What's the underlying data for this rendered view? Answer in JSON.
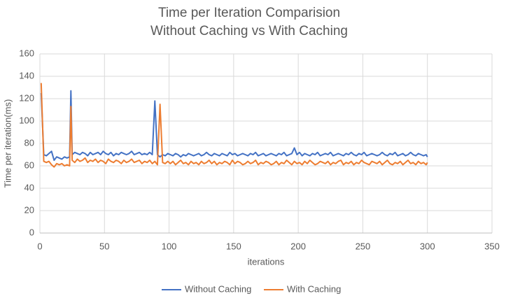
{
  "chart_data": {
    "type": "line",
    "title": "Time per Iteration Comparision",
    "subtitle": "Without Caching vs With Caching",
    "xlabel": "iterations",
    "ylabel": "Time per iteration(ms)",
    "xlim": [
      0,
      350
    ],
    "xticks": [
      0,
      50,
      100,
      150,
      200,
      250,
      300,
      350
    ],
    "ylim": [
      0,
      160
    ],
    "yticks": [
      0,
      20,
      40,
      60,
      80,
      100,
      120,
      140,
      160
    ],
    "grid": true,
    "legend": "bottom",
    "x": [
      1,
      3,
      5,
      7,
      9,
      11,
      13,
      15,
      17,
      19,
      21,
      23,
      24,
      25,
      27,
      29,
      31,
      33,
      35,
      37,
      39,
      41,
      43,
      45,
      47,
      49,
      51,
      53,
      55,
      57,
      59,
      61,
      63,
      65,
      67,
      69,
      71,
      73,
      75,
      77,
      79,
      81,
      83,
      85,
      87,
      89,
      91,
      93,
      95,
      97,
      99,
      101,
      103,
      105,
      107,
      109,
      111,
      113,
      115,
      117,
      119,
      121,
      123,
      125,
      127,
      129,
      131,
      133,
      135,
      137,
      139,
      141,
      143,
      145,
      147,
      149,
      151,
      153,
      155,
      157,
      159,
      161,
      163,
      165,
      167,
      169,
      171,
      173,
      175,
      177,
      179,
      181,
      183,
      185,
      187,
      189,
      191,
      193,
      195,
      197,
      199,
      201,
      203,
      205,
      207,
      209,
      211,
      213,
      215,
      217,
      219,
      221,
      223,
      225,
      227,
      229,
      231,
      233,
      235,
      237,
      239,
      241,
      243,
      245,
      247,
      249,
      251,
      253,
      255,
      257,
      259,
      261,
      263,
      265,
      267,
      269,
      271,
      273,
      275,
      277,
      279,
      281,
      283,
      285,
      287,
      289,
      291,
      293,
      295,
      297,
      299,
      300
    ],
    "series": [
      {
        "name": "Without Caching",
        "color": "#4472c4",
        "values": [
          125,
          70,
          69,
          71,
          73,
          65,
          68,
          67,
          66,
          68,
          67,
          68,
          127,
          70,
          72,
          71,
          70,
          72,
          71,
          69,
          72,
          70,
          71,
          72,
          70,
          73,
          71,
          70,
          72,
          69,
          71,
          70,
          72,
          71,
          70,
          71,
          73,
          70,
          71,
          72,
          70,
          71,
          70,
          72,
          70,
          118,
          70,
          68,
          70,
          69,
          71,
          70,
          69,
          71,
          70,
          68,
          70,
          69,
          71,
          70,
          69,
          70,
          71,
          69,
          70,
          72,
          70,
          69,
          71,
          70,
          69,
          71,
          70,
          69,
          72,
          70,
          71,
          69,
          70,
          71,
          70,
          69,
          71,
          70,
          72,
          69,
          70,
          71,
          69,
          70,
          71,
          70,
          69,
          71,
          70,
          72,
          69,
          70,
          71,
          76,
          70,
          72,
          69,
          71,
          70,
          69,
          71,
          70,
          72,
          69,
          70,
          71,
          70,
          72,
          69,
          70,
          71,
          70,
          69,
          71,
          70,
          72,
          70,
          69,
          71,
          70,
          72,
          69,
          70,
          71,
          70,
          69,
          70,
          72,
          70,
          69,
          71,
          70,
          72,
          69,
          70,
          71,
          69,
          70,
          72,
          70,
          69,
          71,
          70,
          69,
          70,
          68
        ]
      },
      {
        "name": "With Caching",
        "color": "#ed7d31",
        "values": [
          134,
          64,
          63,
          64,
          61,
          59,
          62,
          61,
          62,
          60,
          61,
          60,
          113,
          65,
          63,
          66,
          64,
          65,
          67,
          63,
          65,
          64,
          66,
          63,
          65,
          64,
          62,
          66,
          64,
          63,
          65,
          64,
          62,
          65,
          63,
          64,
          66,
          63,
          64,
          65,
          62,
          64,
          63,
          65,
          62,
          64,
          61,
          115,
          63,
          62,
          64,
          62,
          64,
          61,
          63,
          65,
          62,
          63,
          61,
          64,
          62,
          63,
          61,
          64,
          62,
          63,
          65,
          62,
          64,
          61,
          63,
          62,
          64,
          63,
          61,
          65,
          62,
          64,
          63,
          61,
          62,
          64,
          62,
          63,
          65,
          61,
          63,
          62,
          64,
          63,
          61,
          62,
          64,
          61,
          63,
          62,
          65,
          63,
          61,
          64,
          62,
          63,
          61,
          64,
          62,
          65,
          63,
          61,
          62,
          64,
          63,
          62,
          64,
          61,
          63,
          62,
          64,
          65,
          61,
          63,
          62,
          64,
          61,
          63,
          62,
          65,
          63,
          62,
          61,
          64,
          63,
          62,
          64,
          61,
          63,
          65,
          62,
          61,
          63,
          62,
          64,
          61,
          63,
          65,
          62,
          63,
          61,
          64,
          62,
          63,
          61,
          63
        ]
      }
    ]
  }
}
